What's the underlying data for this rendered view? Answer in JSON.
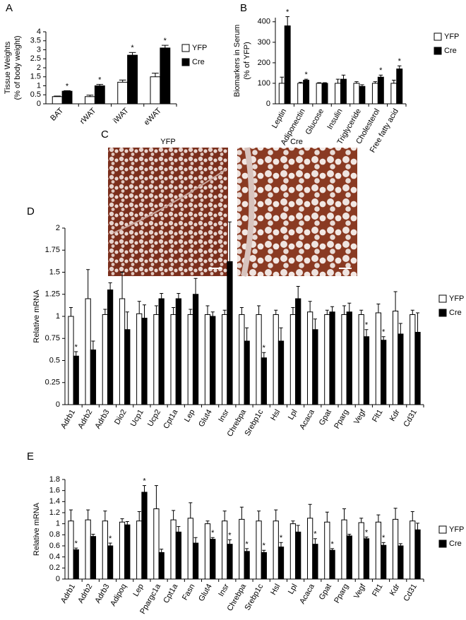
{
  "chart_data": [
    {
      "type": "bar",
      "panel": "A",
      "ylabel": [
        "Tissue Weights",
        "(% of body weight)"
      ],
      "categories": [
        "BAT",
        "rWAT",
        "iWAT",
        "eWAT"
      ],
      "ylim": [
        0,
        4
      ],
      "yticks": [
        0,
        0.5,
        1,
        1.5,
        2,
        2.5,
        3,
        3.5,
        4
      ],
      "legend": "right",
      "series": [
        {
          "name": "YFP",
          "color": "#ffffff",
          "values": [
            0.4,
            0.4,
            1.2,
            1.5
          ],
          "errors": [
            0.03,
            0.08,
            0.12,
            0.2
          ]
        },
        {
          "name": "Cre",
          "color": "#000000",
          "values": [
            0.7,
            1.0,
            2.7,
            3.1
          ],
          "errors": [
            0.03,
            0.08,
            0.15,
            0.15
          ],
          "significance": [
            "*",
            "*",
            "*",
            "*"
          ]
        }
      ]
    },
    {
      "type": "bar",
      "panel": "B",
      "ylabel": [
        "Biomarkers in Serum",
        "(% of YFP)"
      ],
      "categories": [
        "Leptin",
        "Adiponectin",
        "Glucose",
        "Insulin",
        "Triglyceride",
        "Cholesterol",
        "Free fatty acid"
      ],
      "ylim": [
        0,
        420
      ],
      "yticks": [
        0,
        100,
        200,
        300,
        400
      ],
      "legend": "right",
      "series": [
        {
          "name": "YFP",
          "color": "#ffffff",
          "values": [
            100,
            100,
            100,
            100,
            100,
            100,
            100
          ],
          "errors": [
            30,
            5,
            3,
            20,
            8,
            8,
            15
          ]
        },
        {
          "name": "Cre",
          "color": "#000000",
          "values": [
            380,
            115,
            100,
            120,
            85,
            130,
            170
          ],
          "errors": [
            45,
            5,
            3,
            20,
            8,
            10,
            15
          ],
          "significance": [
            "*",
            "*",
            null,
            null,
            null,
            "*",
            "*"
          ]
        }
      ]
    },
    {
      "type": "bar",
      "panel": "D",
      "ylabel": [
        "Relative mRNA"
      ],
      "categories": [
        "Adrb1",
        "Adrb2",
        "Adrb3",
        "Dio2",
        "Ucp1",
        "Ucp2",
        "Cpt1a",
        "Lep",
        "Glut4",
        "Insr",
        "Chrebpa",
        "Srebp1c",
        "Hsl",
        "Lpl",
        "Acaca",
        "Gpat",
        "Pparg",
        "Vegf",
        "Flt1",
        "Kdr",
        "Cd31"
      ],
      "ylim": [
        0,
        2
      ],
      "yticks": [
        0,
        0.25,
        0.5,
        0.75,
        1,
        1.25,
        1.5,
        1.75,
        2
      ],
      "legend": "right",
      "series": [
        {
          "name": "YFP",
          "color": "#ffffff",
          "values": [
            1.0,
            1.2,
            1.02,
            1.2,
            1.03,
            1.02,
            1.02,
            1.02,
            1.02,
            1.02,
            1.02,
            1.02,
            1.02,
            1.02,
            1.05,
            1.02,
            1.02,
            1.02,
            1.04,
            1.06,
            1.02
          ],
          "errors": [
            0.1,
            0.33,
            0.06,
            0.3,
            0.14,
            0.1,
            0.08,
            0.06,
            0.1,
            0.05,
            0.08,
            0.1,
            0.05,
            0.08,
            0.12,
            0.05,
            0.1,
            0.05,
            0.1,
            0.22,
            0.05
          ]
        },
        {
          "name": "Cre",
          "color": "#000000",
          "values": [
            0.55,
            0.62,
            1.3,
            0.85,
            0.98,
            1.2,
            1.2,
            1.25,
            1.0,
            1.62,
            0.72,
            0.53,
            0.72,
            1.2,
            0.85,
            1.05,
            1.05,
            0.77,
            0.73,
            0.8,
            0.82
          ],
          "errors": [
            0.05,
            0.1,
            0.08,
            0.2,
            0.15,
            0.06,
            0.06,
            0.18,
            0.05,
            0.45,
            0.15,
            0.06,
            0.15,
            0.14,
            0.12,
            0.06,
            0.1,
            0.08,
            0.04,
            0.12,
            0.22
          ],
          "significance": [
            "*",
            null,
            null,
            null,
            null,
            null,
            null,
            null,
            null,
            null,
            null,
            "*",
            null,
            null,
            null,
            null,
            null,
            "*",
            "*",
            null,
            null
          ]
        }
      ]
    },
    {
      "type": "bar",
      "panel": "E",
      "ylabel": [
        "Relative mRNA"
      ],
      "categories": [
        "Adrb1",
        "Adrb2",
        "Adrb3",
        "Adipoq",
        "Lep",
        "Ppargc1a",
        "Cpt1a",
        "Fasn",
        "Glut4",
        "Insr",
        "Chrebpa",
        "Srebp1c",
        "Hsl",
        "Lpl",
        "Acaca",
        "Gpat",
        "Pparg",
        "Vegf",
        "Flt1",
        "Kdr",
        "Cd31"
      ],
      "ylim": [
        0,
        1.8
      ],
      "yticks": [
        0,
        0.2,
        0.4,
        0.6,
        0.8,
        1,
        1.2,
        1.4,
        1.6,
        1.8
      ],
      "legend": "right",
      "series": [
        {
          "name": "YFP",
          "color": "#ffffff",
          "values": [
            1.05,
            1.07,
            1.05,
            1.03,
            1.05,
            1.27,
            1.07,
            1.1,
            1.0,
            1.05,
            1.08,
            1.05,
            1.05,
            1.0,
            1.1,
            1.03,
            1.07,
            1.02,
            1.03,
            1.08,
            1.05
          ],
          "errors": [
            0.2,
            0.18,
            0.18,
            0.06,
            0.17,
            0.42,
            0.17,
            0.28,
            0.05,
            0.18,
            0.22,
            0.18,
            0.2,
            0.05,
            0.25,
            0.18,
            0.2,
            0.08,
            0.13,
            0.2,
            0.17
          ]
        },
        {
          "name": "Cre",
          "color": "#000000",
          "values": [
            0.53,
            0.77,
            0.6,
            0.98,
            1.57,
            0.48,
            0.85,
            0.65,
            0.72,
            0.63,
            0.5,
            0.48,
            0.58,
            0.85,
            0.63,
            0.52,
            0.78,
            0.73,
            0.61,
            0.6,
            0.89
          ],
          "errors": [
            0.03,
            0.04,
            0.05,
            0.06,
            0.12,
            0.06,
            0.1,
            0.1,
            0.03,
            0.08,
            0.05,
            0.04,
            0.08,
            0.12,
            0.1,
            0.03,
            0.03,
            0.03,
            0.05,
            0.04,
            0.12
          ],
          "significance": [
            "*",
            null,
            "*",
            null,
            "*",
            null,
            null,
            null,
            "*",
            "*",
            "*",
            "*",
            "*",
            null,
            "*",
            "*",
            null,
            "*",
            "*",
            null,
            null
          ]
        }
      ]
    }
  ],
  "image_panel": {
    "panel": "C",
    "labels": [
      "YFP",
      "Cre"
    ]
  }
}
